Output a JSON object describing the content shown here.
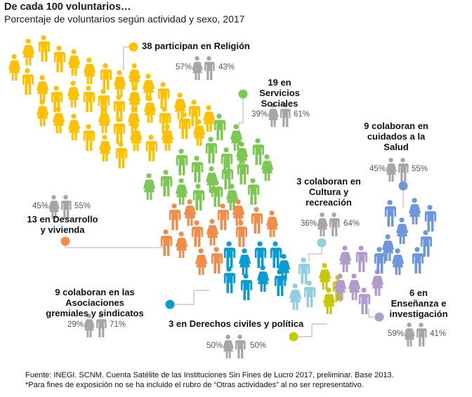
{
  "title": "De cada 100 voluntarios…",
  "subtitle": "Porcentaje de voluntarios según actividad y sexo, 2017",
  "footer": {
    "source": "Fuente: INEGI. SCNM. Cuenta Satélite de las Instituciones Sin Fines de Lucro 2017, preliminar. Base 2013.",
    "note": "*Para fines de exposición no se ha incluido el rubro de “Otras actividades” al no ser representativo."
  },
  "icons": {
    "female": "woman-icon",
    "male": "man-icon",
    "couple": "couple-icon"
  },
  "chart_data": {
    "type": "pictogram",
    "title": "De cada 100 voluntarios…",
    "subtitle": "Porcentaje de voluntarios según actividad y sexo, 2017",
    "total": 100,
    "unit": "voluntarios",
    "categories": [
      {
        "key": "religion",
        "count": 38,
        "label": "participan en Religión",
        "text": "38 participan en Religión",
        "female_pct": 57,
        "male_pct": 43,
        "color": "#FFC000",
        "female_label": "57%",
        "male_label": "43%"
      },
      {
        "key": "servicios_sociales",
        "count": 19,
        "label": "en Servicios Sociales",
        "text": "19 en Servicios Sociales",
        "female_pct": 39,
        "male_pct": 61,
        "color": "#7DC855",
        "female_label": "39%",
        "male_label": "61%"
      },
      {
        "key": "desarrollo_vivienda",
        "count": 13,
        "label": "en Desarrollo y vivienda",
        "text": "13 en Desarrollo y vivienda",
        "female_pct": 45,
        "male_pct": 55,
        "color": "#F28C4A",
        "female_label": "45%",
        "male_label": "55%"
      },
      {
        "key": "asociaciones_gremiales",
        "count": 9,
        "label": "colaboran en las Asociaciones gremiales y sindicatos",
        "text": "9 colaboran en las Asociaciones gremiales y sindicatos",
        "female_pct": 29,
        "male_pct": 71,
        "color": "#0A9BD2",
        "female_label": "29%",
        "male_label": "71%"
      },
      {
        "key": "cultura_recreacion",
        "count": 3,
        "label": "colaboran en Cultura y recreación",
        "text": "3 colaboran en Cultura y recreación",
        "female_pct": 36,
        "male_pct": 64,
        "color": "#93CDE0",
        "female_label": "36%",
        "male_label": "64%"
      },
      {
        "key": "derechos_civiles",
        "count": 3,
        "label": "en Derechos civiles y política",
        "text": "3 en Derechos civiles y política",
        "female_pct": 50,
        "male_pct": 50,
        "color": "#C8C800",
        "female_label": "50%",
        "male_label": "50%"
      },
      {
        "key": "ensenanza",
        "count": 6,
        "label": "en Enseñanza e investigación",
        "text": "6 en Enseñanza e investigación",
        "female_pct": 59,
        "male_pct": 41,
        "color": "#B19BCB",
        "female_label": "59%",
        "male_label": "41%"
      },
      {
        "key": "salud",
        "count": 9,
        "label": "colaboran en cuidados a la Salud",
        "text": "9 colaboran en cuidados a la Salud",
        "female_pct": 45,
        "male_pct": 55,
        "color": "#6E96DC",
        "female_label": "45%",
        "male_label": "55%"
      }
    ],
    "pair_icon_color": "#A6A6A6",
    "leader_line_color": "#BFBFBF"
  },
  "labels": {
    "religion": {
      "l1": "38 participan en Religión"
    },
    "servicios": {
      "l1": "19 en Servicios",
      "l2": "Sociales"
    },
    "salud": {
      "l1": "9 colaboran en",
      "l2": "cuidados a la",
      "l3": "Salud"
    },
    "cultura": {
      "l1": "3 colaboran en",
      "l2": "Cultura y",
      "l3": "recreación"
    },
    "desarrollo": {
      "l1": "13 en Desarrollo",
      "l2": "y vivienda"
    },
    "gremiales": {
      "l1": "9 colaboran en las Asociaciones",
      "l2": "gremiales y sindicatos"
    },
    "derechos": {
      "l1": "3 en Derechos civiles y política"
    },
    "ensenanza": {
      "l1": "6 en",
      "l2": "Enseñanza e",
      "l3": "investigación"
    }
  }
}
